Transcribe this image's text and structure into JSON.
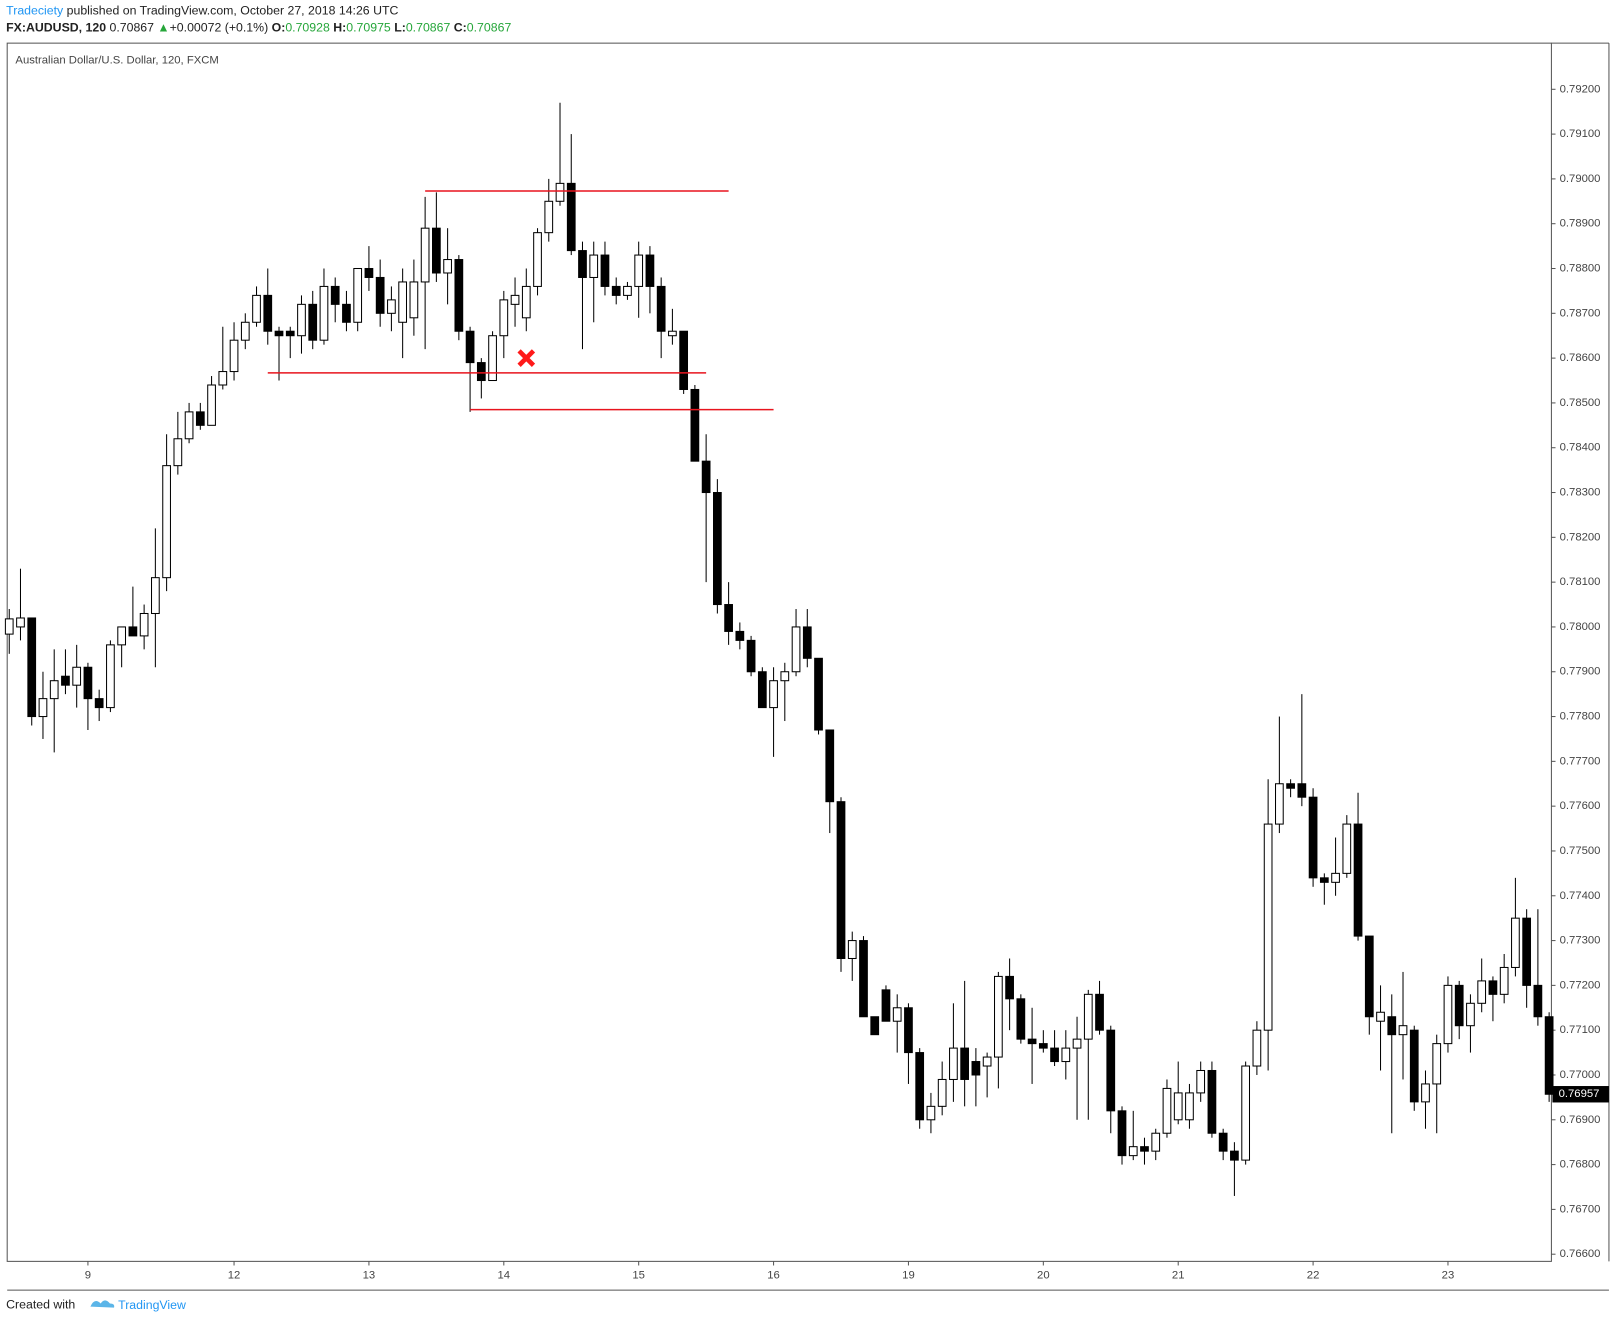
{
  "header": {
    "author": "Tradeciety",
    "published": "published on TradingView.com, October 27, 2018 14:26 UTC",
    "symbol": "FX:AUDUSD, 120",
    "price": "0.70867",
    "arrow": "▲",
    "change": "+0.00072 (+0.1%)",
    "o_label": "O:",
    "o": "0.70928",
    "h_label": "H:",
    "h": "0.70975",
    "l_label": "L:",
    "l": "0.70867",
    "c_label": "C:",
    "c": "0.70867"
  },
  "footer": {
    "created": "Created with",
    "brand": "TradingView"
  },
  "chart_data": {
    "type": "candlestick",
    "title": "Australian Dollar/U.S. Dollar, 120, FXCM",
    "categories": [
      null,
      null,
      null,
      null,
      null,
      null,
      null,
      "9",
      null,
      null,
      null,
      null,
      null,
      null,
      null,
      null,
      null,
      null,
      null,
      null,
      "12",
      null,
      null,
      null,
      null,
      null,
      null,
      null,
      null,
      null,
      null,
      null,
      "13",
      null,
      null,
      null,
      null,
      null,
      null,
      null,
      null,
      null,
      null,
      null,
      "14",
      null,
      null,
      null,
      null,
      null,
      null,
      null,
      null,
      null,
      null,
      null,
      "15",
      null,
      null,
      null,
      null,
      null,
      null,
      null,
      null,
      null,
      null,
      null,
      "16",
      null,
      null,
      null,
      null,
      null,
      null,
      null,
      null,
      null,
      null,
      null,
      "19",
      null,
      null,
      null,
      null,
      null,
      null,
      null,
      null,
      null,
      null,
      null,
      "20",
      null,
      null,
      null,
      null,
      null,
      null,
      null,
      null,
      null,
      null,
      null,
      "21",
      null,
      null,
      null,
      null,
      null,
      null,
      null,
      null,
      null,
      null,
      null,
      "22",
      null,
      null,
      null,
      null,
      null,
      null,
      null,
      null,
      null,
      null,
      null,
      "23",
      null,
      null,
      null,
      null,
      null,
      null,
      null,
      null,
      null
    ],
    "open": [
      0.77984,
      0.78,
      0.7802,
      0.778,
      0.7784,
      0.7789,
      0.7787,
      0.7791,
      0.7784,
      0.7782,
      0.7796,
      0.78,
      0.7798,
      0.7803,
      0.7811,
      0.7836,
      0.7842,
      0.7848,
      0.7845,
      0.7854,
      0.7857,
      0.7864,
      0.7868,
      0.7874,
      0.7866,
      0.7866,
      0.7865,
      0.7872,
      0.7864,
      0.7876,
      0.7872,
      0.7868,
      0.788,
      0.7878,
      0.787,
      0.7868,
      0.7869,
      0.7877,
      0.7889,
      0.7879,
      0.7882,
      0.7866,
      0.7859,
      0.7855,
      0.7865,
      0.7872,
      0.7869,
      0.7876,
      0.7888,
      0.7895,
      0.7899,
      0.7884,
      0.7878,
      0.7883,
      0.7876,
      0.7874,
      0.7876,
      0.7883,
      0.7876,
      0.7865,
      0.7866,
      0.7853,
      0.7837,
      0.783,
      0.7805,
      0.7799,
      0.7797,
      0.779,
      0.7782,
      0.7788,
      0.779,
      0.78,
      0.7793,
      0.7777,
      0.7761,
      0.7726,
      0.773,
      0.7713,
      0.7719,
      0.7712,
      0.7715,
      0.7705,
      0.769,
      0.7693,
      0.7699,
      0.7706,
      0.7703,
      0.7702,
      0.7704,
      0.7722,
      0.7717,
      0.7708,
      0.7707,
      0.7706,
      0.7703,
      0.7706,
      0.7708,
      0.7718,
      0.771,
      0.7692,
      0.7682,
      0.7684,
      0.7683,
      0.7687,
      0.769,
      0.769,
      0.7696,
      0.7701,
      0.7687,
      0.7683,
      0.7681,
      0.7702,
      0.771,
      0.7756,
      0.7765,
      0.7765,
      0.7762,
      0.7744,
      0.7743,
      0.7745,
      0.7756,
      0.7731,
      0.7712,
      0.7713,
      0.7709,
      0.771,
      0.7694,
      0.7698,
      0.7707,
      0.772,
      0.7711,
      0.7716,
      0.7721,
      0.7718,
      0.7724,
      0.7735,
      0.772,
      0.7713
    ],
    "high": [
      0.7804,
      0.7813,
      0.7802,
      0.779,
      0.7795,
      0.7795,
      0.7796,
      0.7792,
      0.7786,
      0.7797,
      0.78,
      0.7809,
      0.7805,
      0.7822,
      0.7843,
      0.7848,
      0.785,
      0.785,
      0.7856,
      0.7867,
      0.7868,
      0.787,
      0.7876,
      0.788,
      0.7867,
      0.7867,
      0.7874,
      0.7875,
      0.788,
      0.7878,
      0.7875,
      0.788,
      0.7885,
      0.7882,
      0.7876,
      0.788,
      0.7882,
      0.7896,
      0.7897,
      0.7889,
      0.7883,
      0.7867,
      0.786,
      0.7866,
      0.7875,
      0.7878,
      0.788,
      0.7889,
      0.79,
      0.7917,
      0.791,
      0.7886,
      0.7886,
      0.7886,
      0.7878,
      0.7877,
      0.7886,
      0.7885,
      0.7878,
      0.7871,
      0.7866,
      0.7854,
      0.7843,
      0.7833,
      0.781,
      0.7801,
      0.7798,
      0.7791,
      0.7791,
      0.7792,
      0.7804,
      0.7804,
      0.7793,
      0.7777,
      0.7762,
      0.7732,
      0.7731,
      0.7713,
      0.772,
      0.7718,
      0.7716,
      0.7706,
      0.7696,
      0.7703,
      0.7716,
      0.7721,
      0.7706,
      0.7705,
      0.7723,
      0.7726,
      0.7718,
      0.7715,
      0.771,
      0.771,
      0.771,
      0.7713,
      0.7719,
      0.7721,
      0.7711,
      0.7693,
      0.7692,
      0.7686,
      0.7688,
      0.7699,
      0.7703,
      0.7698,
      0.7703,
      0.7703,
      0.7688,
      0.7685,
      0.7703,
      0.7712,
      0.7766,
      0.778,
      0.7766,
      0.7785,
      0.7764,
      0.7745,
      0.7753,
      0.7758,
      0.7763,
      0.7731,
      0.772,
      0.7718,
      0.7723,
      0.7711,
      0.7701,
      0.7709,
      0.7722,
      0.7721,
      0.7718,
      0.7726,
      0.7722,
      0.7727,
      0.7744,
      0.7737,
      0.7737,
      0.7714
    ],
    "low": [
      0.7794,
      0.7797,
      0.7778,
      0.7775,
      0.7772,
      0.7785,
      0.7782,
      0.7777,
      0.7779,
      0.7781,
      0.7791,
      0.7798,
      0.7795,
      0.7791,
      0.7808,
      0.7834,
      0.7841,
      0.7844,
      0.7845,
      0.7853,
      0.7855,
      0.7862,
      0.7867,
      0.7863,
      0.7855,
      0.786,
      0.7861,
      0.7862,
      0.7863,
      0.7868,
      0.7866,
      0.7866,
      0.7875,
      0.7867,
      0.7866,
      0.786,
      0.7865,
      0.7862,
      0.7877,
      0.7872,
      0.7864,
      0.7848,
      0.7851,
      0.7855,
      0.786,
      0.7867,
      0.7866,
      0.7874,
      0.7886,
      0.7894,
      0.7883,
      0.7862,
      0.7868,
      0.7874,
      0.7872,
      0.7873,
      0.7869,
      0.787,
      0.786,
      0.7863,
      0.7852,
      0.7837,
      0.781,
      0.7803,
      0.7796,
      0.7795,
      0.7789,
      0.7782,
      0.7771,
      0.7779,
      0.7789,
      0.7791,
      0.7776,
      0.7754,
      0.7723,
      0.7721,
      0.7713,
      0.7709,
      0.7712,
      0.7705,
      0.7698,
      0.7688,
      0.7687,
      0.7691,
      0.7694,
      0.7693,
      0.7693,
      0.7695,
      0.7697,
      0.771,
      0.7707,
      0.7698,
      0.7705,
      0.7702,
      0.7699,
      0.769,
      0.769,
      0.7709,
      0.7687,
      0.768,
      0.7681,
      0.768,
      0.7681,
      0.7686,
      0.7689,
      0.7688,
      0.7694,
      0.7686,
      0.7681,
      0.7673,
      0.768,
      0.77,
      0.7701,
      0.7754,
      0.7762,
      0.776,
      0.7742,
      0.7738,
      0.774,
      0.7744,
      0.773,
      0.7709,
      0.7701,
      0.7687,
      0.7699,
      0.7692,
      0.7688,
      0.7687,
      0.7705,
      0.7708,
      0.7705,
      0.7714,
      0.7712,
      0.7716,
      0.7722,
      0.7715,
      0.7711,
      0.7694
    ],
    "close": [
      0.78018,
      0.7802,
      0.778,
      0.7784,
      0.7788,
      0.7787,
      0.7791,
      0.7784,
      0.7782,
      0.7796,
      0.78,
      0.7798,
      0.7803,
      0.7811,
      0.7836,
      0.7842,
      0.7848,
      0.7845,
      0.7854,
      0.7857,
      0.7864,
      0.7868,
      0.7874,
      0.7866,
      0.7865,
      0.7865,
      0.7872,
      0.7864,
      0.7876,
      0.7872,
      0.7868,
      0.788,
      0.7878,
      0.787,
      0.7873,
      0.7877,
      0.7877,
      0.7889,
      0.7879,
      0.7882,
      0.7866,
      0.7859,
      0.7855,
      0.7865,
      0.7873,
      0.7874,
      0.7876,
      0.7888,
      0.7895,
      0.7899,
      0.7884,
      0.7878,
      0.7883,
      0.7876,
      0.7874,
      0.7876,
      0.7883,
      0.7876,
      0.7866,
      0.7866,
      0.7853,
      0.7837,
      0.783,
      0.7805,
      0.7799,
      0.7797,
      0.779,
      0.7782,
      0.7788,
      0.779,
      0.78,
      0.7793,
      0.7777,
      0.7761,
      0.7726,
      0.773,
      0.7713,
      0.7709,
      0.7712,
      0.7715,
      0.7705,
      0.769,
      0.7693,
      0.7699,
      0.7706,
      0.7699,
      0.77,
      0.7704,
      0.7722,
      0.7717,
      0.7708,
      0.7707,
      0.7706,
      0.7703,
      0.7706,
      0.7708,
      0.7718,
      0.771,
      0.7692,
      0.7682,
      0.7684,
      0.7683,
      0.7687,
      0.7697,
      0.7696,
      0.7696,
      0.7701,
      0.7687,
      0.7683,
      0.7681,
      0.7702,
      0.771,
      0.7756,
      0.7765,
      0.7764,
      0.7762,
      0.7744,
      0.7743,
      0.7745,
      0.7756,
      0.7731,
      0.7713,
      0.7714,
      0.7709,
      0.7711,
      0.7694,
      0.7698,
      0.7707,
      0.772,
      0.7711,
      0.7716,
      0.7721,
      0.7718,
      0.7724,
      0.7735,
      0.772,
      0.7713,
      0.76957
    ],
    "last_price_label": "0.76957",
    "up_color": "#ffffff",
    "down_color": "#000000",
    "outline_color": "#000000",
    "ylim": [
      0.76584,
      0.79303
    ],
    "yticks": [
      {
        "value": 0.766,
        "label": "0.76600"
      },
      {
        "value": 0.767,
        "label": "0.76700"
      },
      {
        "value": 0.768,
        "label": "0.76800"
      },
      {
        "value": 0.769,
        "label": "0.76900"
      },
      {
        "value": 0.77,
        "label": "0.77000"
      },
      {
        "value": 0.771,
        "label": "0.77100"
      },
      {
        "value": 0.772,
        "label": "0.77200"
      },
      {
        "value": 0.773,
        "label": "0.77300"
      },
      {
        "value": 0.774,
        "label": "0.77400"
      },
      {
        "value": 0.775,
        "label": "0.77500"
      },
      {
        "value": 0.776,
        "label": "0.77600"
      },
      {
        "value": 0.777,
        "label": "0.77700"
      },
      {
        "value": 0.778,
        "label": "0.77800"
      },
      {
        "value": 0.779,
        "label": "0.77900"
      },
      {
        "value": 0.78,
        "label": "0.78000"
      },
      {
        "value": 0.781,
        "label": "0.78100"
      },
      {
        "value": 0.782,
        "label": "0.78200"
      },
      {
        "value": 0.783,
        "label": "0.78300"
      },
      {
        "value": 0.784,
        "label": "0.78400"
      },
      {
        "value": 0.785,
        "label": "0.78500"
      },
      {
        "value": 0.786,
        "label": "0.78600"
      },
      {
        "value": 0.787,
        "label": "0.78700"
      },
      {
        "value": 0.788,
        "label": "0.78800"
      },
      {
        "value": 0.789,
        "label": "0.78900"
      },
      {
        "value": 0.79,
        "label": "0.79000"
      },
      {
        "value": 0.791,
        "label": "0.79100"
      },
      {
        "value": 0.792,
        "label": "0.79200"
      }
    ],
    "grid": false,
    "level_lines": [
      {
        "value": 0.78973,
        "start": 37,
        "end": 64
      },
      {
        "value": 0.78567,
        "start": 23,
        "end": 62
      },
      {
        "value": 0.78485,
        "start": 41,
        "end": 68
      }
    ],
    "level_color": "#e8141e",
    "marker": {
      "x": 46,
      "y": 0.786
    },
    "marker_color": "#ff1a1a"
  }
}
